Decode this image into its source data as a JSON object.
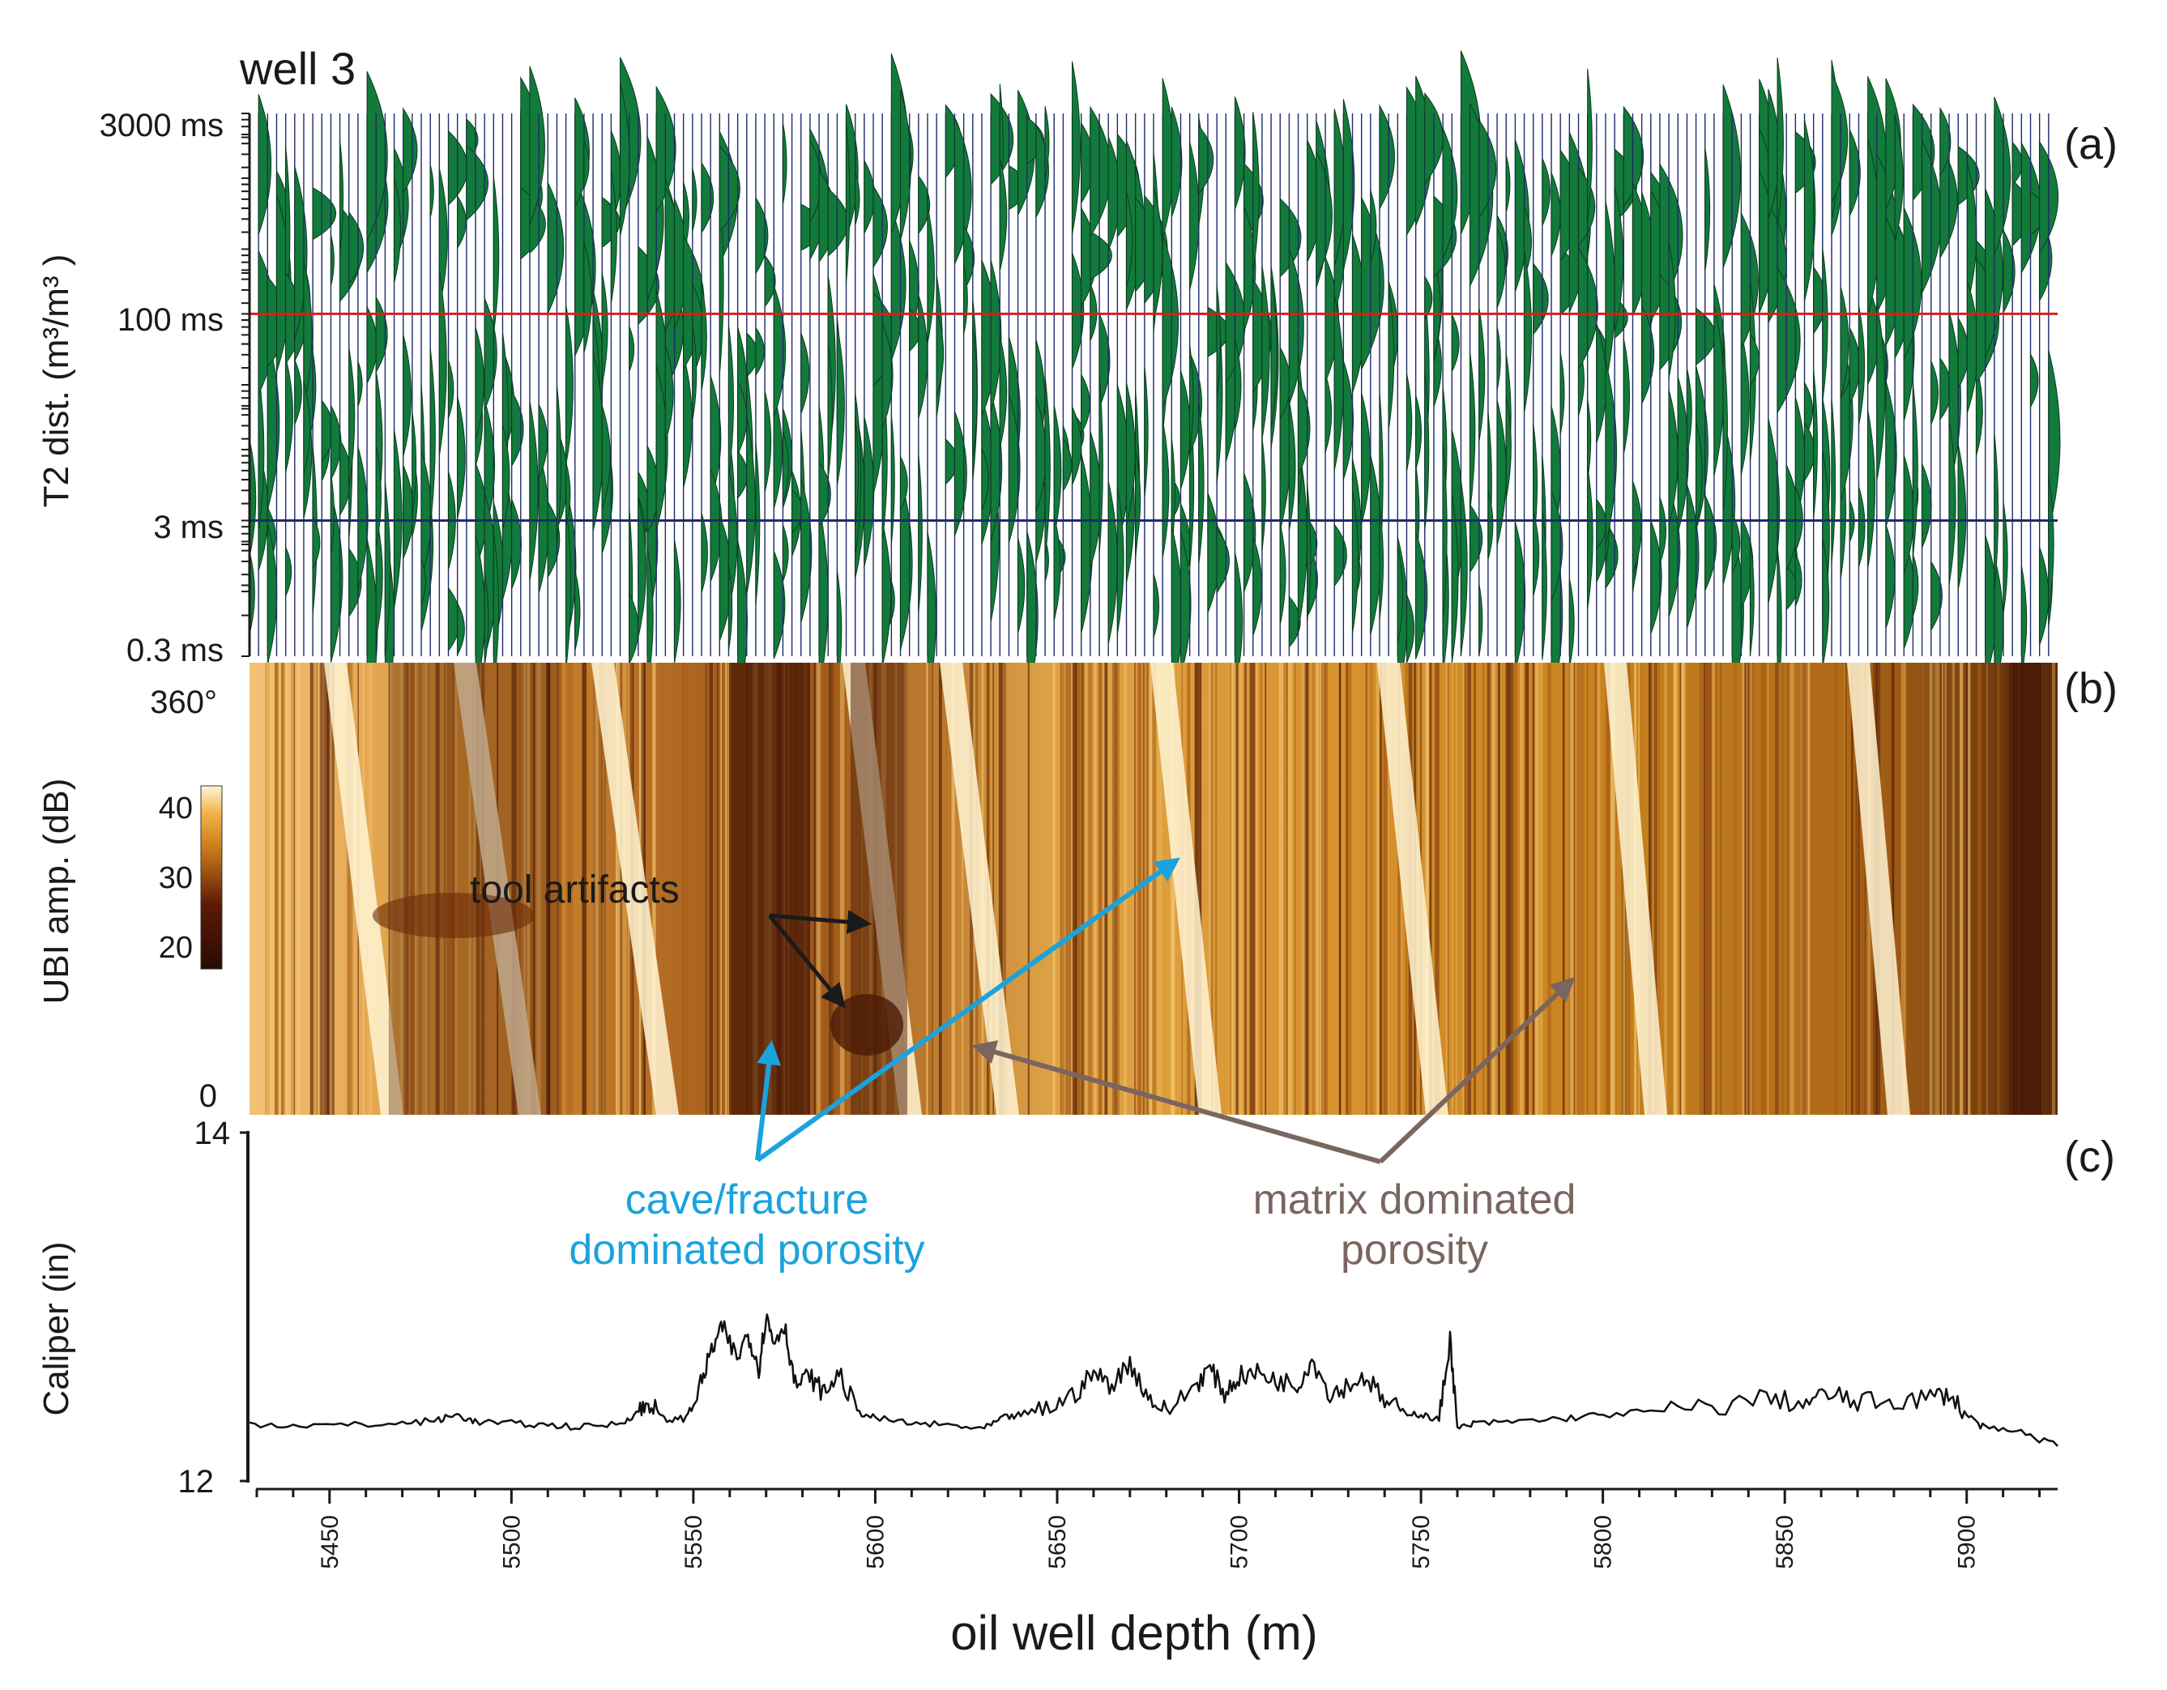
{
  "figure": {
    "title": "well 3",
    "xlabel": "oil well depth (m)"
  },
  "chart_data": [
    {
      "type": "heatmap",
      "panel_label": "(a)",
      "ylabel": "T2  dist. (m³/m³ )",
      "y_scale": "log",
      "y_ticks": [
        "3000 ms",
        "100 ms",
        "3 ms",
        "0.3 ms"
      ],
      "y_tick_values": [
        3000,
        100,
        3,
        0.3
      ],
      "x_range": [
        5428,
        5925
      ],
      "reference_lines": [
        {
          "value": 100,
          "color": "#d81e1e"
        },
        {
          "value": 3,
          "color": "#1f2a6b"
        }
      ],
      "colors": {
        "fill": "#127a3a",
        "trace": "#1f2a6b"
      },
      "grid": true
    },
    {
      "type": "heatmap",
      "panel_label": "(b)",
      "ylabel": "UBI amp. (dB)",
      "y_ticks": [
        "360°",
        "0"
      ],
      "y_range": [
        0,
        360
      ],
      "x_range": [
        5428,
        5925
      ],
      "colorbar": {
        "ticks": [
          40,
          30,
          20
        ],
        "range": [
          15,
          45
        ]
      },
      "colors": {
        "low": "#2a0a04",
        "mid": "#c8781a",
        "high": "#fff5d8"
      }
    },
    {
      "type": "line",
      "panel_label": "(c)",
      "ylabel": "Caliper (in)",
      "ylim": [
        12,
        14
      ],
      "y_ticks": [
        14,
        12
      ],
      "xlim": [
        5428,
        5925
      ],
      "x_ticks": [
        5450,
        5500,
        5550,
        5600,
        5650,
        5700,
        5750,
        5800,
        5850,
        5900
      ],
      "x": [
        5428,
        5440,
        5455,
        5470,
        5480,
        5485,
        5490,
        5500,
        5510,
        5520,
        5530,
        5535,
        5538,
        5542,
        5548,
        5552,
        5555,
        5558,
        5562,
        5565,
        5568,
        5570,
        5572,
        5575,
        5578,
        5582,
        5586,
        5590,
        5595,
        5600,
        5610,
        5620,
        5630,
        5635,
        5640,
        5648,
        5655,
        5660,
        5665,
        5670,
        5675,
        5680,
        5688,
        5692,
        5696,
        5700,
        5705,
        5710,
        5716,
        5720,
        5725,
        5730,
        5735,
        5740,
        5745,
        5750,
        5755,
        5758,
        5760,
        5765,
        5775,
        5790,
        5800,
        5815,
        5830,
        5845,
        5855,
        5862,
        5870,
        5880,
        5890,
        5895,
        5900,
        5905,
        5915,
        5925
      ],
      "values": [
        12.33,
        12.32,
        12.32,
        12.33,
        12.35,
        12.38,
        12.34,
        12.33,
        12.32,
        12.31,
        12.33,
        12.4,
        12.45,
        12.35,
        12.36,
        12.55,
        12.75,
        12.88,
        12.7,
        12.85,
        12.65,
        12.95,
        12.8,
        12.9,
        12.55,
        12.6,
        12.5,
        12.62,
        12.4,
        12.36,
        12.33,
        12.32,
        12.3,
        12.36,
        12.38,
        12.42,
        12.5,
        12.62,
        12.55,
        12.68,
        12.48,
        12.4,
        12.55,
        12.65,
        12.5,
        12.6,
        12.62,
        12.58,
        12.55,
        12.7,
        12.5,
        12.55,
        12.6,
        12.45,
        12.4,
        12.38,
        12.35,
        12.82,
        12.3,
        12.33,
        12.34,
        12.36,
        12.38,
        12.4,
        12.42,
        12.48,
        12.44,
        12.5,
        12.45,
        12.46,
        12.48,
        12.5,
        12.38,
        12.3,
        12.28,
        12.2
      ],
      "color": "#111111"
    }
  ],
  "annotations": {
    "tool_artifacts": "tool artifacts",
    "cave_line1": "cave/fracture",
    "cave_line2": "dominated porosity",
    "matrix_line1": "matrix dominated",
    "matrix_line2": "porosity",
    "cave_color": "#1aa3dd",
    "matrix_color": "#7a6560",
    "artifact_color": "#1a1a1a"
  }
}
